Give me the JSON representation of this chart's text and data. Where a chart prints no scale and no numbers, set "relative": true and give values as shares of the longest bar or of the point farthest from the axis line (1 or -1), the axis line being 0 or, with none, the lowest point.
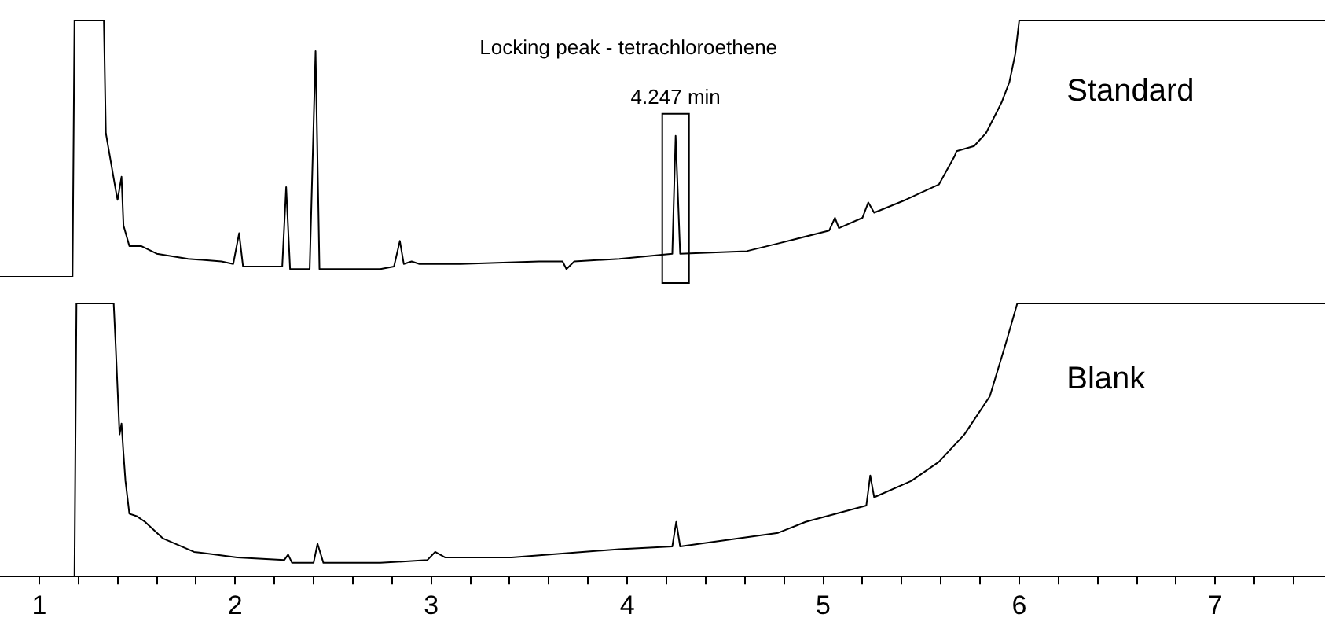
{
  "chart_data": [
    {
      "type": "line",
      "relative": true,
      "xlim": [
        0.8,
        7.56
      ],
      "tick_labels": false,
      "grid": false,
      "legend": false,
      "marker": "none",
      "line_style": "solid",
      "annotations": [
        "Locking peak - tetrachloroethene",
        {
          "text": "4.247 min",
          "x": 4.247,
          "y": 0.55
        }
      ],
      "series": [
        {
          "name": "Standard",
          "color": "#000000",
          "x": [
            0.8,
            1.17,
            1.18,
            1.33,
            1.34,
            1.39,
            1.4,
            1.42,
            1.43,
            1.46,
            1.52,
            1.6,
            1.76,
            1.93,
            1.99,
            2.02,
            2.04,
            2.24,
            2.26,
            2.28,
            2.38,
            2.41,
            2.43,
            2.74,
            2.81,
            2.84,
            2.86,
            2.9,
            2.94,
            3.15,
            3.55,
            3.67,
            3.69,
            3.73,
            3.96,
            4.23,
            4.247,
            4.27,
            4.61,
            4.77,
            5.03,
            5.06,
            5.08,
            5.2,
            5.23,
            5.26,
            5.42,
            5.59,
            5.67,
            5.68,
            5.77,
            5.83,
            5.91,
            5.95,
            5.98,
            6.0,
            7.56
          ],
          "values": [
            0,
            0,
            1,
            1,
            0.56,
            0.34,
            0.3,
            0.39,
            0.2,
            0.12,
            0.12,
            0.09,
            0.07,
            0.06,
            0.05,
            0.17,
            0.04,
            0.04,
            0.35,
            0.03,
            0.03,
            0.88,
            0.03,
            0.03,
            0.04,
            0.14,
            0.05,
            0.06,
            0.05,
            0.05,
            0.06,
            0.06,
            0.03,
            0.06,
            0.07,
            0.09,
            0.55,
            0.09,
            0.1,
            0.13,
            0.18,
            0.23,
            0.19,
            0.23,
            0.29,
            0.25,
            0.3,
            0.36,
            0.47,
            0.49,
            0.51,
            0.56,
            0.68,
            0.76,
            0.87,
            1,
            1
          ]
        }
      ]
    },
    {
      "type": "line",
      "relative": true,
      "xlim": [
        0.8,
        7.56
      ],
      "xticks": [
        1,
        {
          "value": 1.2,
          "label": null
        },
        {
          "value": 1.4,
          "label": null
        },
        {
          "value": 1.6,
          "label": null
        },
        {
          "value": 1.8,
          "label": null
        },
        2,
        {
          "value": 2.2,
          "label": null
        },
        {
          "value": 2.4,
          "label": null
        },
        {
          "value": 2.6,
          "label": null
        },
        {
          "value": 2.8,
          "label": null
        },
        3,
        {
          "value": 3.2,
          "label": null
        },
        {
          "value": 3.4,
          "label": null
        },
        {
          "value": 3.6,
          "label": null
        },
        {
          "value": 3.8,
          "label": null
        },
        4,
        {
          "value": 4.2,
          "label": null
        },
        {
          "value": 4.4,
          "label": null
        },
        {
          "value": 4.6,
          "label": null
        },
        {
          "value": 4.8,
          "label": null
        },
        5,
        {
          "value": 5.2,
          "label": null
        },
        {
          "value": 5.4,
          "label": null
        },
        {
          "value": 5.6,
          "label": null
        },
        {
          "value": 5.8,
          "label": null
        },
        6,
        {
          "value": 6.2,
          "label": null
        },
        {
          "value": 6.4,
          "label": null
        },
        {
          "value": 6.6,
          "label": null
        },
        {
          "value": 6.8,
          "label": null
        },
        7,
        {
          "value": 7.2,
          "label": null
        },
        {
          "value": 7.4,
          "label": null
        }
      ],
      "tick_labels": "x",
      "grid": false,
      "legend": false,
      "marker": "none",
      "line_style": "solid",
      "series": [
        {
          "name": "Blank",
          "color": "#000000",
          "x": [
            0.8,
            1.18,
            1.19,
            1.38,
            1.39,
            1.41,
            1.42,
            1.43,
            1.44,
            1.46,
            1.5,
            1.54,
            1.63,
            1.79,
            2.01,
            2.25,
            2.27,
            2.29,
            2.4,
            2.42,
            2.45,
            2.74,
            2.98,
            3.02,
            3.07,
            3.41,
            3.96,
            4.23,
            4.25,
            4.27,
            4.77,
            4.91,
            5.22,
            5.24,
            5.26,
            5.45,
            5.59,
            5.72,
            5.85,
            5.93,
            5.99,
            7.56
          ],
          "values": [
            0,
            0,
            1,
            1,
            0.85,
            0.52,
            0.56,
            0.45,
            0.35,
            0.23,
            0.22,
            0.2,
            0.14,
            0.09,
            0.07,
            0.06,
            0.08,
            0.05,
            0.05,
            0.12,
            0.05,
            0.05,
            0.06,
            0.09,
            0.07,
            0.07,
            0.1,
            0.11,
            0.2,
            0.11,
            0.16,
            0.2,
            0.26,
            0.37,
            0.29,
            0.35,
            0.42,
            0.52,
            0.66,
            0.85,
            1,
            1
          ]
        }
      ]
    }
  ]
}
